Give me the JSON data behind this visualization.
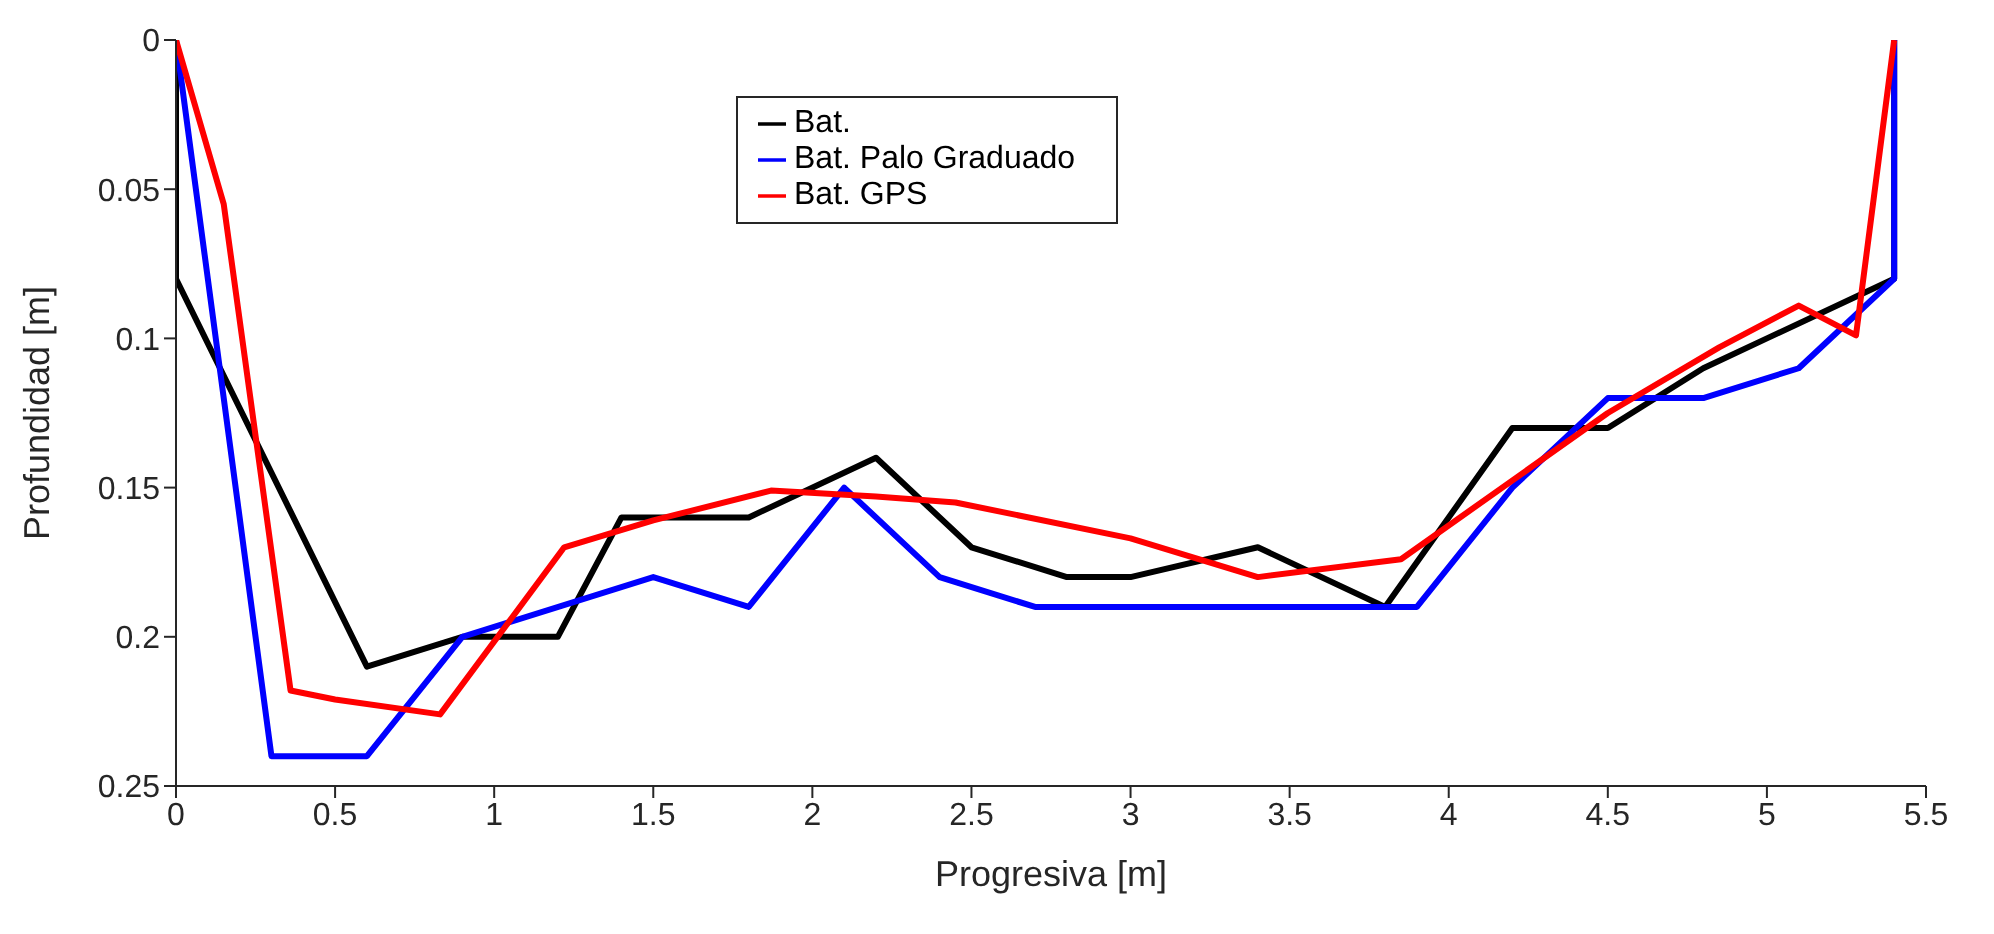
{
  "chart_data": {
    "type": "line",
    "xlabel": "Progresiva [m]",
    "ylabel": "Profundidad [m]",
    "xlim": [
      0,
      5.5
    ],
    "xticks": [
      0,
      0.5,
      1,
      1.5,
      2,
      2.5,
      3,
      3.5,
      4,
      4.5,
      5,
      5.5
    ],
    "ylim": [
      0.25,
      0
    ],
    "yticks": [
      0,
      0.05,
      0.1,
      0.15,
      0.2,
      0.25
    ],
    "grid": false,
    "legend": "top",
    "marker": "none",
    "line_style": "solid",
    "series": [
      {
        "name": "Bat.",
        "color": "#000000",
        "x": [
          0,
          0,
          0.6,
          0.9,
          1.2,
          1.4,
          1.8,
          2.2,
          2.5,
          2.8,
          3.0,
          3.4,
          3.8,
          4.2,
          4.5,
          4.8,
          5.0,
          5.4,
          5.4
        ],
        "values": [
          0,
          0.08,
          0.21,
          0.2,
          0.2,
          0.16,
          0.16,
          0.14,
          0.17,
          0.18,
          0.18,
          0.17,
          0.19,
          0.13,
          0.13,
          0.11,
          0.1,
          0.08,
          0
        ]
      },
      {
        "name": "Bat. Palo Graduado",
        "color": "#0000ff",
        "x": [
          0,
          0.3,
          0.6,
          0.9,
          1.5,
          1.8,
          2.1,
          2.4,
          2.7,
          3.9,
          4.2,
          4.5,
          4.8,
          5.1,
          5.4,
          5.4
        ],
        "values": [
          0,
          0.24,
          0.24,
          0.2,
          0.18,
          0.19,
          0.15,
          0.18,
          0.19,
          0.19,
          0.15,
          0.12,
          0.12,
          0.11,
          0.08,
          0
        ]
      },
      {
        "name": "Bat. GPS",
        "color": "#ff0000",
        "x": [
          0,
          0.15,
          0.36,
          0.5,
          0.83,
          1.22,
          1.5,
          1.87,
          2.2,
          2.45,
          3.0,
          3.4,
          3.85,
          4.5,
          4.85,
          5.1,
          5.28,
          5.4
        ],
        "values": [
          0,
          0.055,
          0.218,
          0.221,
          0.226,
          0.17,
          0.161,
          0.151,
          0.153,
          0.155,
          0.167,
          0.18,
          0.174,
          0.125,
          0.103,
          0.089,
          0.099,
          0
        ]
      }
    ]
  }
}
